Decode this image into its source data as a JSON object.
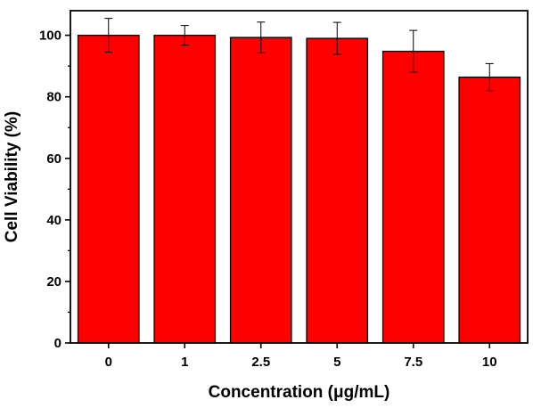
{
  "chart_data": {
    "type": "bar",
    "title": "",
    "xlabel": "Concentration (μg/mL)",
    "ylabel": "Cell Viability (%)",
    "categories": [
      "0",
      "1",
      "2.5",
      "5",
      "7.5",
      "10"
    ],
    "values": [
      100,
      100,
      99.3,
      99.0,
      94.8,
      86.4
    ],
    "errors": [
      5.5,
      3.2,
      5.0,
      5.2,
      6.8,
      4.4
    ],
    "ylim": [
      0,
      108
    ],
    "yticks": [
      0,
      20,
      40,
      60,
      80,
      100
    ],
    "grid": false,
    "legend": "none",
    "colors": {
      "bar": "#ff0000",
      "edge": "#000000",
      "axis": "#000000"
    }
  }
}
